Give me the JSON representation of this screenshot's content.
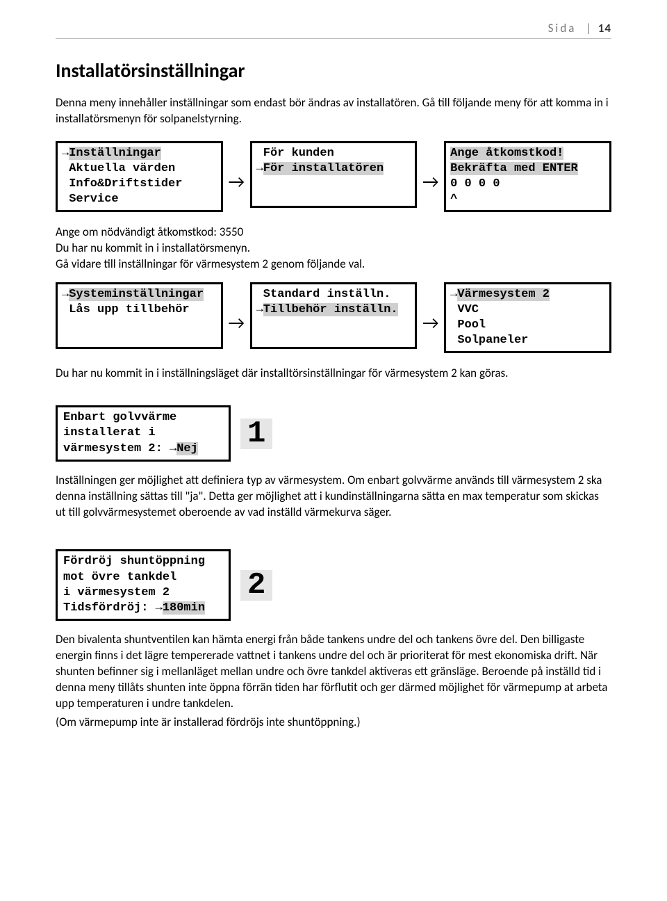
{
  "header": {
    "label": "Sida",
    "page": "14"
  },
  "title": "Installatörsinställningar",
  "intro": "Denna meny innehåller inställningar som endast bör ändras av installatören. Gå till följande meny för att komma in i installatörsmenyn för solpanelstyrning.",
  "menuRow1": {
    "box1": {
      "lines": [
        {
          "pre": "→",
          "text": "Inställningar",
          "hl": true
        },
        {
          "pre": " ",
          "text": "Aktuella värden"
        },
        {
          "pre": " ",
          "text": "Info&Driftstider"
        },
        {
          "pre": " ",
          "text": "Service"
        }
      ]
    },
    "box2": {
      "lines": [
        {
          "pre": " ",
          "text": "För kunden"
        },
        {
          "pre": "→",
          "text": "För installatören",
          "hl": true
        }
      ]
    },
    "box3": {
      "lines": [
        {
          "pre": "",
          "text": "Ange åtkomstkod!",
          "hl": true
        },
        {
          "pre": "",
          "text": "Bekräfta med ENTER",
          "hl": true
        },
        {
          "pre": "",
          "text": "0 0 0 0"
        },
        {
          "pre": "",
          "text": "^"
        }
      ]
    }
  },
  "midText1": "Ange om nödvändigt åtkomstkod: 3550",
  "midText2": "Du har nu kommit in i installatörsmenyn.",
  "midText3": "Gå vidare till inställningar för värmesystem 2 genom följande val.",
  "menuRow2": {
    "box1": {
      "lines": [
        {
          "pre": "→",
          "text": "Systeminställningar",
          "hl": true
        },
        {
          "pre": " ",
          "text": "Lås upp tillbehör"
        }
      ]
    },
    "box2": {
      "lines": [
        {
          "pre": " ",
          "text": "Standard inställn."
        },
        {
          "pre": "→",
          "text": "Tillbehör inställn.",
          "hl": true
        }
      ]
    },
    "box3": {
      "lines": [
        {
          "pre": "→",
          "text": "Värmesystem 2",
          "hl": true
        },
        {
          "pre": " ",
          "text": "VVC"
        },
        {
          "pre": " ",
          "text": "Pool"
        },
        {
          "pre": " ",
          "text": "Solpaneler"
        }
      ]
    }
  },
  "afterRow2": "Du har nu kommit in i inställningsläget där installtörsinställningar för värmesystem 2 kan göras.",
  "setting1": {
    "lines": [
      "Enbart golvvärme",
      "installerat i",
      "värmesystem 2: →Nej"
    ],
    "num": "1"
  },
  "para1": "Inställningen ger möjlighet att definiera typ av värmesystem. Om enbart golvvärme används till värmesystem 2 ska denna inställning sättas till \"ja\". Detta ger möjlighet att i kundinställningarna sätta en max temperatur som skickas ut till golvvärmesystemet oberoende av vad inställd värmekurva säger.",
  "setting2": {
    "lines": [
      "Fördröj shuntöppning",
      "mot övre tankdel",
      "i värmesystem 2",
      "Tidsfördröj: →180min"
    ],
    "num": "2"
  },
  "para2": "Den bivalenta shuntventilen kan hämta energi från både tankens undre del och tankens övre del. Den billigaste energin finns i det lägre tempererade vattnet i tankens undre del och är prioriterat för mest ekonomiska drift. När shunten befinner sig i mellanläget mellan undre och övre tankdel aktiveras ett gränsläge. Beroende på inställd tid i denna meny tillåts shunten inte öppna förrän tiden har förflutit och ger därmed möjlighet för värmepump at arbeta upp temperaturen i undre tankdelen.",
  "para2b": "(Om värmepump inte är installerad fördröjs inte shuntöppning.)"
}
